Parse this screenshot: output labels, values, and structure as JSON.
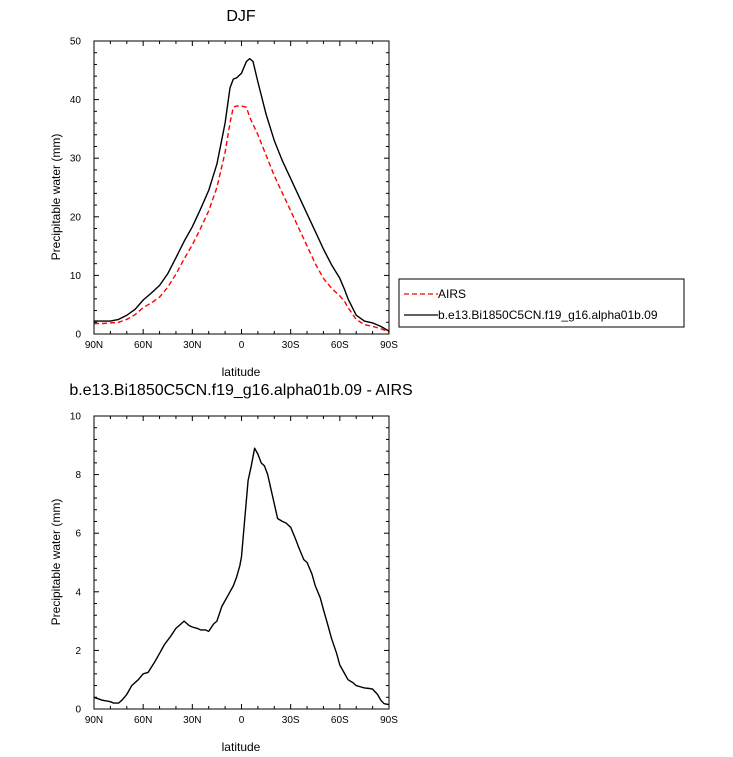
{
  "chart_data": [
    {
      "type": "line",
      "title": "DJF",
      "xlabel": "latitude",
      "ylabel": "Precipitable water (mm)",
      "xlim": [
        90,
        -90
      ],
      "ylim": [
        0,
        50
      ],
      "x_ticks": [
        90,
        60,
        30,
        0,
        -30,
        -60,
        -90
      ],
      "x_tick_labels": [
        "90N",
        "60N",
        "30N",
        "0",
        "30S",
        "60S",
        "90S"
      ],
      "y_ticks": [
        0,
        10,
        20,
        30,
        40,
        50
      ],
      "y_tick_labels": [
        "0",
        "10",
        "20",
        "30",
        "40",
        "50"
      ],
      "legend_position": "outside-right",
      "series": [
        {
          "name": "AIRS",
          "color": "#ff0000",
          "dash": "dashed",
          "x": [
            90,
            85,
            80,
            75,
            70,
            65,
            60,
            55,
            50,
            45,
            40,
            35,
            30,
            25,
            20,
            15,
            10,
            7,
            5,
            3,
            0,
            -3,
            -5,
            -10,
            -15,
            -20,
            -25,
            -30,
            -35,
            -40,
            -45,
            -50,
            -55,
            -60,
            -63,
            -65,
            -70,
            -75,
            -80,
            -85,
            -90
          ],
          "y": [
            1.8,
            1.8,
            1.9,
            2.0,
            2.5,
            3.3,
            4.5,
            5.3,
            6.3,
            8.0,
            10.2,
            12.8,
            15.2,
            18.0,
            21.0,
            25.0,
            31.0,
            36.0,
            38.7,
            38.9,
            38.9,
            38.7,
            37.0,
            34.0,
            30.5,
            27.0,
            24.0,
            21.0,
            18.0,
            15.0,
            12.0,
            9.5,
            7.8,
            6.5,
            5.5,
            4.5,
            2.5,
            1.6,
            1.3,
            0.9,
            0.3
          ]
        },
        {
          "name": "b.e13.Bi1850C5CN.f19_g16.alpha01b.09",
          "color": "#000000",
          "dash": "solid",
          "x": [
            90,
            85,
            80,
            75,
            70,
            65,
            60,
            55,
            50,
            45,
            40,
            35,
            30,
            25,
            20,
            15,
            10,
            7,
            5,
            3,
            0,
            -3,
            -5,
            -7,
            -10,
            -15,
            -20,
            -25,
            -30,
            -35,
            -40,
            -45,
            -50,
            -55,
            -60,
            -63,
            -65,
            -70,
            -75,
            -80,
            -85,
            -90
          ],
          "y": [
            2.2,
            2.2,
            2.2,
            2.5,
            3.2,
            4.2,
            5.8,
            7.0,
            8.3,
            10.3,
            13.0,
            15.8,
            18.3,
            21.3,
            24.5,
            29.0,
            36.0,
            42.0,
            43.5,
            43.7,
            44.5,
            46.5,
            47.0,
            46.5,
            43.0,
            37.5,
            33.0,
            29.5,
            26.5,
            23.5,
            20.5,
            17.5,
            14.5,
            11.8,
            9.5,
            7.5,
            6.0,
            3.2,
            2.2,
            1.9,
            1.3,
            0.5
          ]
        }
      ]
    },
    {
      "type": "line",
      "title": "b.e13.Bi1850C5CN.f19_g16.alpha01b.09 - AIRS",
      "xlabel": "latitude",
      "ylabel": "Precipitable water (mm)",
      "xlim": [
        90,
        -90
      ],
      "ylim": [
        0,
        10
      ],
      "x_ticks": [
        90,
        60,
        30,
        0,
        -30,
        -60,
        -90
      ],
      "x_tick_labels": [
        "90N",
        "60N",
        "30N",
        "0",
        "30S",
        "60S",
        "90S"
      ],
      "y_ticks": [
        0,
        2,
        4,
        6,
        8,
        10
      ],
      "y_tick_labels": [
        "0",
        "2",
        "4",
        "6",
        "8",
        "10"
      ],
      "series": [
        {
          "color": "#000000",
          "dash": "solid",
          "x": [
            90,
            85,
            80,
            78,
            75,
            73,
            70,
            67,
            63,
            60,
            57,
            53,
            50,
            47,
            43,
            40,
            37,
            35,
            32,
            30,
            27,
            25,
            22,
            20,
            17,
            15,
            12,
            10,
            7,
            5,
            3,
            1,
            0,
            -2,
            -4,
            -6,
            -8,
            -10,
            -12,
            -14,
            -16,
            -18,
            -20,
            -22,
            -25,
            -27,
            -30,
            -33,
            -35,
            -38,
            -40,
            -43,
            -45,
            -48,
            -50,
            -53,
            -55,
            -58,
            -60,
            -62,
            -65,
            -68,
            -70,
            -73,
            -75,
            -78,
            -80,
            -83,
            -85,
            -87,
            -90
          ],
          "y": [
            0.4,
            0.3,
            0.25,
            0.2,
            0.2,
            0.3,
            0.5,
            0.8,
            1.0,
            1.2,
            1.25,
            1.6,
            1.9,
            2.2,
            2.5,
            2.75,
            2.9,
            3.0,
            2.85,
            2.8,
            2.75,
            2.7,
            2.7,
            2.65,
            2.9,
            3.0,
            3.5,
            3.7,
            4.0,
            4.2,
            4.5,
            4.9,
            5.2,
            6.5,
            7.8,
            8.3,
            8.9,
            8.7,
            8.4,
            8.3,
            8.0,
            7.5,
            7.0,
            6.5,
            6.4,
            6.35,
            6.2,
            5.8,
            5.5,
            5.1,
            5.0,
            4.6,
            4.2,
            3.8,
            3.4,
            2.8,
            2.4,
            1.9,
            1.5,
            1.3,
            1.0,
            0.9,
            0.8,
            0.75,
            0.72,
            0.7,
            0.68,
            0.5,
            0.3,
            0.18,
            0.15
          ]
        }
      ]
    }
  ]
}
